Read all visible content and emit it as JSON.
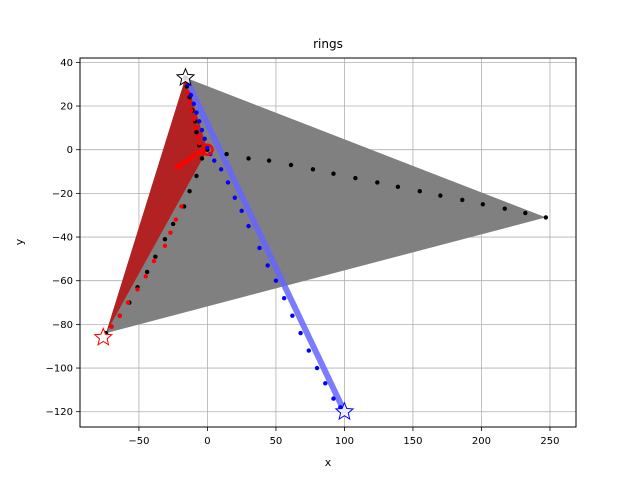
{
  "chart_data": {
    "type": "scatter",
    "title": "rings",
    "xlabel": "x",
    "ylabel": "y",
    "xlim": [
      -93,
      269
    ],
    "ylim": [
      -127,
      42
    ],
    "xticks": [
      -50,
      0,
      50,
      100,
      150,
      200,
      250
    ],
    "yticks": [
      40,
      20,
      0,
      -20,
      -40,
      -60,
      -80,
      -100,
      -120
    ],
    "xtick_labels": [
      "−50",
      "0",
      "50",
      "100",
      "150",
      "200",
      "250"
    ],
    "ytick_labels": [
      "40",
      "20",
      "0",
      "−20",
      "−40",
      "−60",
      "−80",
      "−100",
      "−120"
    ],
    "grid": true,
    "colors": {
      "black_series": "#000000",
      "red_series": "#ff0000",
      "blue_series": "#0000ff",
      "gray_fill": "#808080",
      "red_fill": "#b22222",
      "blue_fill": "#6666ff"
    },
    "polygons": [
      {
        "name": "",
        "color": "#808080",
        "points": [
          [
            -16,
            33
          ],
          [
            247,
            -31
          ],
          [
            -74,
            -84
          ]
        ]
      },
      {
        "name": "",
        "color": "#b22222",
        "points": [
          [
            -16,
            33
          ],
          [
            -74,
            -84
          ],
          [
            0,
            0
          ]
        ]
      }
    ],
    "bands": [
      {
        "color": "#6666ff",
        "from": [
          -16,
          33
        ],
        "to": [
          100,
          -120
        ],
        "width": 3
      }
    ],
    "series": [
      {
        "name": "",
        "color": "#000000",
        "points": [
          [
            0,
            0
          ],
          [
            14,
            -2
          ],
          [
            30,
            -4
          ],
          [
            45,
            -5
          ],
          [
            61,
            -7
          ],
          [
            77,
            -9
          ],
          [
            92,
            -11
          ],
          [
            108,
            -13
          ],
          [
            124,
            -15
          ],
          [
            139,
            -17
          ],
          [
            155,
            -19
          ],
          [
            170,
            -21
          ],
          [
            186,
            -23
          ],
          [
            201,
            -25
          ],
          [
            217,
            -27
          ],
          [
            232,
            -29
          ],
          [
            247,
            -31
          ]
        ]
      },
      {
        "name": "",
        "color": "#000000",
        "points": [
          [
            -16,
            33
          ],
          [
            -15,
            29
          ],
          [
            -13,
            24
          ],
          [
            -11,
            18
          ],
          [
            -9,
            13
          ],
          [
            -8,
            8
          ],
          [
            -6,
            2
          ],
          [
            -4,
            -4
          ],
          [
            -8,
            -12
          ],
          [
            -13,
            -19
          ],
          [
            -17,
            -26
          ],
          [
            -25,
            -34
          ],
          [
            -31,
            -41
          ],
          [
            -38,
            -49
          ],
          [
            -44,
            -56
          ],
          [
            -51,
            -63
          ],
          [
            -57,
            -70
          ],
          [
            -64,
            -76
          ],
          [
            -70,
            -81
          ],
          [
            -74,
            -84
          ]
        ]
      },
      {
        "name": "",
        "color": "#ff0000",
        "points": [
          [
            -16,
            31
          ],
          [
            -14,
            26
          ],
          [
            -13,
            22
          ],
          [
            -12,
            18
          ],
          [
            -10,
            14
          ],
          [
            -9,
            10
          ],
          [
            -7,
            6
          ],
          [
            -6,
            3
          ],
          [
            -20,
            -8
          ],
          [
            -17,
            -6
          ],
          [
            -14,
            -5
          ],
          [
            -11,
            -3
          ],
          [
            -9,
            -2
          ],
          [
            -6,
            -1
          ],
          [
            -19,
            -26
          ],
          [
            -23,
            -32
          ],
          [
            -27,
            -38
          ],
          [
            -31,
            -44
          ],
          [
            -39,
            -51
          ],
          [
            -45,
            -58
          ],
          [
            -51,
            -64
          ],
          [
            -58,
            -70
          ],
          [
            -64,
            -76
          ],
          [
            -70,
            -81
          ]
        ]
      },
      {
        "name": "",
        "color": "#0000ff",
        "points": [
          [
            -14,
            30
          ],
          [
            -12,
            25
          ],
          [
            -10,
            21
          ],
          [
            -8,
            17
          ],
          [
            -6,
            13
          ],
          [
            -4,
            9
          ],
          [
            -2,
            5
          ],
          [
            0,
            1
          ],
          [
            2,
            -2
          ],
          [
            5,
            -5
          ],
          [
            10,
            -9
          ],
          [
            15,
            -15
          ],
          [
            20,
            -22
          ],
          [
            25,
            -28
          ],
          [
            30,
            -35
          ],
          [
            38,
            -45
          ],
          [
            44,
            -53
          ],
          [
            50,
            -60
          ],
          [
            56,
            -68
          ],
          [
            62,
            -76
          ],
          [
            68,
            -84
          ],
          [
            74,
            -92
          ],
          [
            80,
            -100
          ],
          [
            86,
            -107
          ],
          [
            92,
            -114
          ],
          [
            97,
            -118
          ]
        ]
      }
    ],
    "markers": [
      {
        "name": "",
        "shape": "star",
        "color": "#000000",
        "x": -16,
        "y": 33
      },
      {
        "name": "",
        "shape": "star",
        "color": "#ff0000",
        "x": -76,
        "y": -86
      },
      {
        "name": "",
        "shape": "star",
        "color": "#0000ff",
        "x": 100,
        "y": -120
      },
      {
        "name": "",
        "shape": "circle",
        "color": "#ff0000",
        "x": 0,
        "y": 0
      }
    ],
    "segments": [
      {
        "color": "#ff0000",
        "from": [
          -23,
          -8
        ],
        "to": [
          -2,
          0
        ]
      }
    ]
  }
}
